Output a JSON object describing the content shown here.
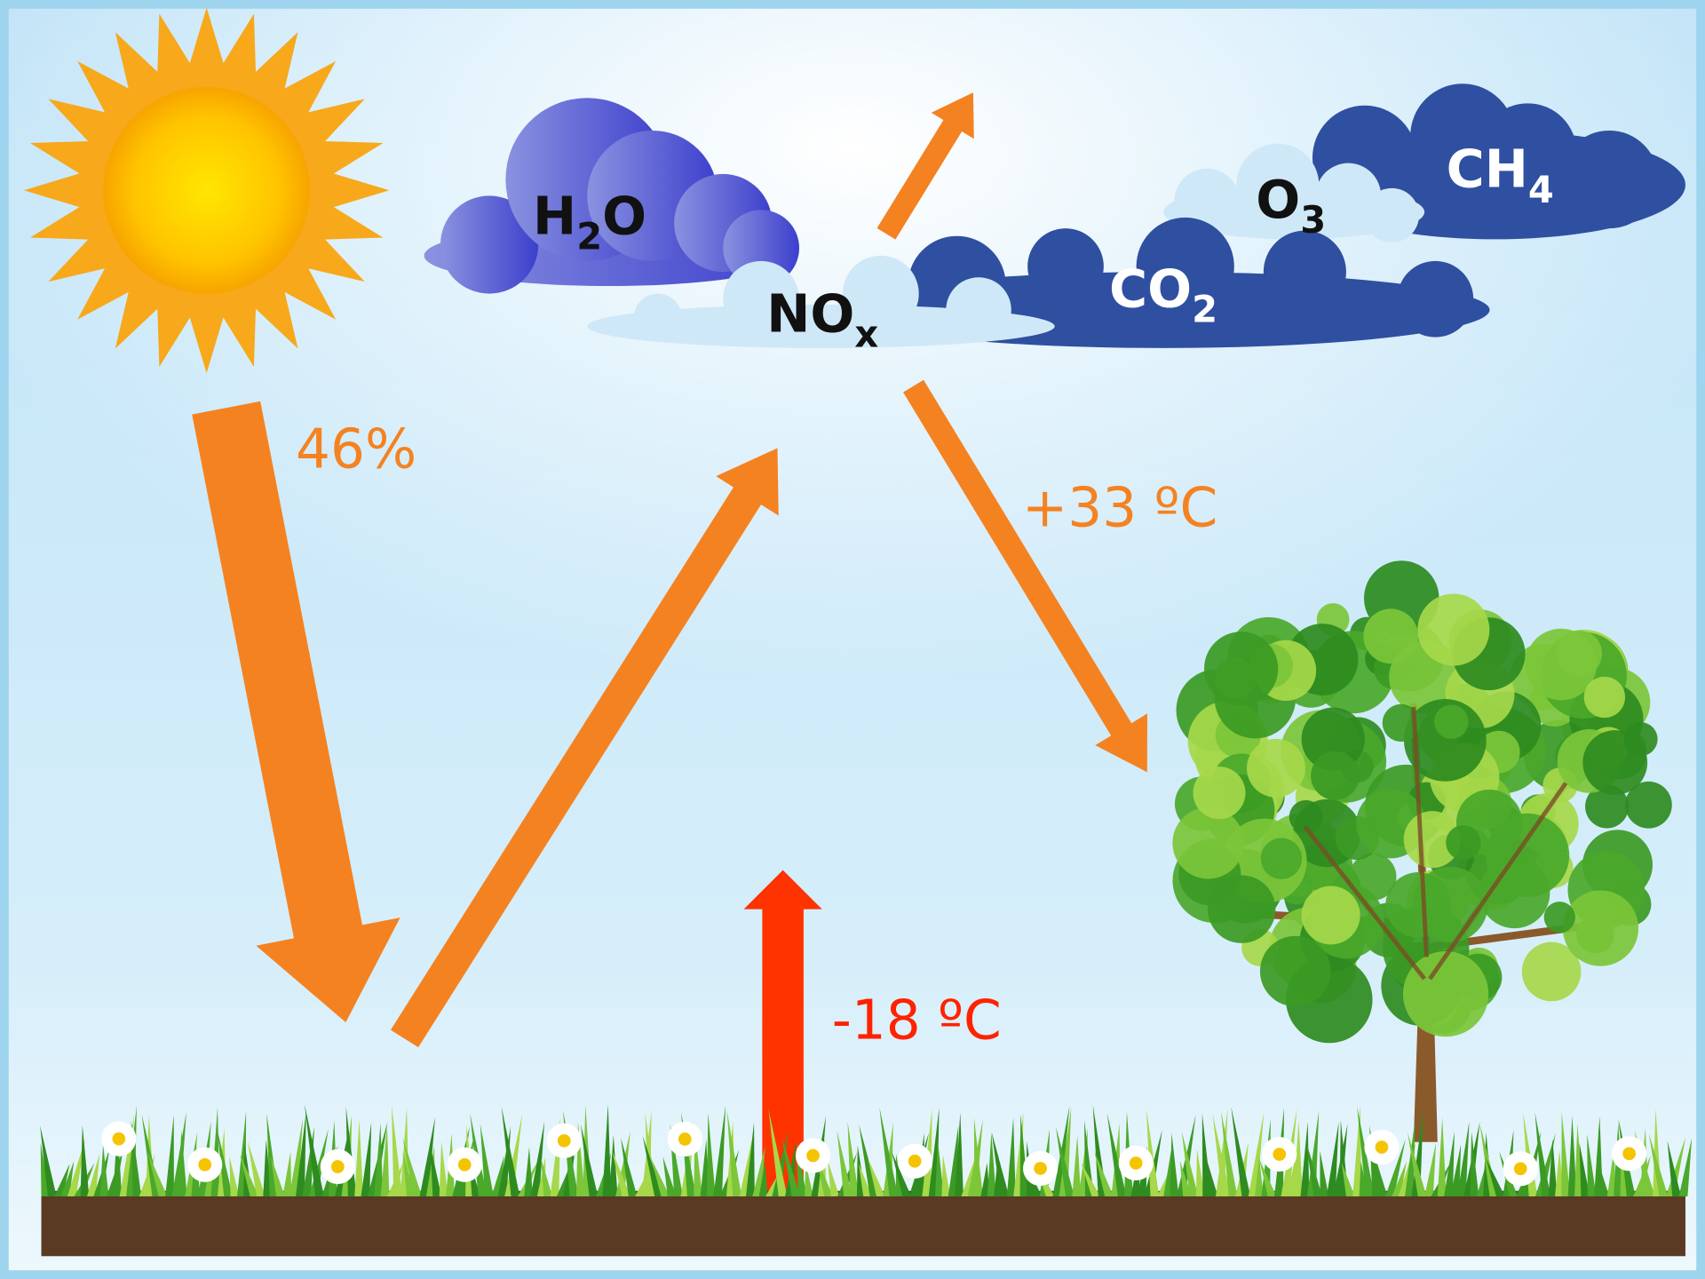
{
  "gases": [
    {
      "text": "H",
      "sub": "2",
      "after": "O"
    },
    {
      "text": "NO",
      "sub": "x"
    },
    {
      "text": "CO",
      "sub": "2"
    },
    {
      "text": "O",
      "sub": "3"
    },
    {
      "text": "CH",
      "sub": "4"
    }
  ],
  "labels": {
    "absorbed": "46%",
    "with_greenhouse": "+33 ºC",
    "without_greenhouse": "-18 ºC"
  }
}
